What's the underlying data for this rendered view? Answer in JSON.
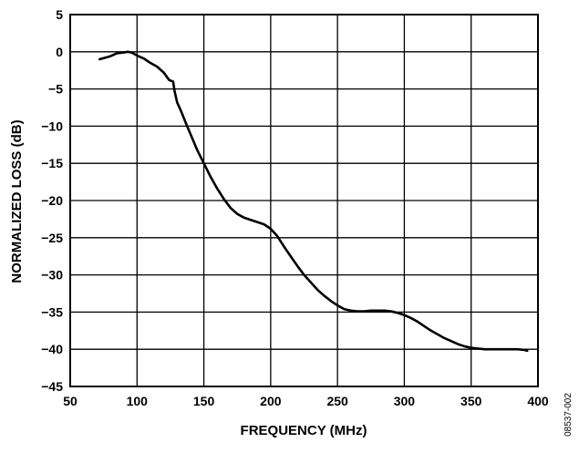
{
  "chart_data": {
    "type": "line",
    "title": "",
    "xlabel": "FREQUENCY (MHz)",
    "ylabel": "NORMALIZED LOSS (dB)",
    "xlim": [
      50,
      400
    ],
    "ylim": [
      -45,
      5
    ],
    "x_ticks": [
      50,
      100,
      150,
      200,
      250,
      300,
      350,
      400
    ],
    "y_ticks": [
      5,
      0,
      -5,
      -10,
      -15,
      -20,
      -25,
      -30,
      -35,
      -40,
      -45
    ],
    "y_tick_labels": [
      "5",
      "0",
      "−5",
      "−10",
      "−15",
      "−20",
      "−25",
      "−30",
      "−35",
      "−40",
      "−45"
    ],
    "grid": true,
    "legend": "none",
    "series": [
      {
        "x": [
          72,
          76,
          80,
          85,
          90,
          93,
          96,
          100,
          105,
          110,
          115,
          120,
          124,
          127,
          128,
          129,
          130,
          133,
          137,
          141,
          145,
          150,
          155,
          160,
          165,
          170,
          175,
          180,
          185,
          190,
          195,
          200,
          205,
          210,
          215,
          220,
          225,
          230,
          235,
          240,
          245,
          250,
          255,
          260,
          265,
          270,
          275,
          280,
          285,
          290,
          295,
          300,
          305,
          310,
          315,
          320,
          325,
          330,
          335,
          340,
          345,
          350,
          355,
          360,
          365,
          370,
          375,
          380,
          385,
          390,
          392
        ],
        "y": [
          -1.0,
          -0.8,
          -0.6,
          -0.2,
          -0.1,
          0.0,
          -0.1,
          -0.5,
          -0.9,
          -1.5,
          -2.0,
          -2.8,
          -3.8,
          -4.0,
          -5.2,
          -6.0,
          -6.8,
          -8.0,
          -9.8,
          -11.5,
          -13.2,
          -15.0,
          -16.8,
          -18.4,
          -19.8,
          -21.0,
          -21.8,
          -22.3,
          -22.6,
          -22.9,
          -23.2,
          -23.8,
          -24.8,
          -26.2,
          -27.5,
          -28.8,
          -30.0,
          -31.0,
          -32.0,
          -32.8,
          -33.5,
          -34.1,
          -34.6,
          -34.8,
          -34.9,
          -34.9,
          -34.8,
          -34.8,
          -34.8,
          -34.9,
          -35.1,
          -35.4,
          -35.8,
          -36.3,
          -36.9,
          -37.5,
          -38.0,
          -38.5,
          -38.9,
          -39.3,
          -39.6,
          -39.8,
          -39.9,
          -40.0,
          -40.0,
          -40.0,
          -40.0,
          -40.0,
          -40.0,
          -40.1,
          -40.2
        ],
        "color": "#000000"
      }
    ]
  },
  "figure_code": "08537-002"
}
